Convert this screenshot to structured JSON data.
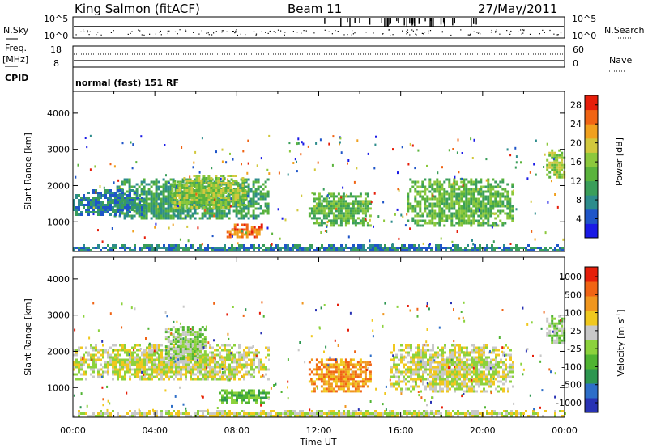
{
  "header": {
    "station": "King Salmon (fitACF)",
    "beam": "Beam 11",
    "date": "27/May/2011"
  },
  "panels": {
    "nsky_label": "N.Sky",
    "nsky_ticks": [
      "10^5",
      "10^0"
    ],
    "nsearch_label": "N.Search",
    "freq_label": "Freq.",
    "freq_unit": "[MHz]",
    "freq_ticks": [
      "18",
      "8"
    ],
    "nave_label": "Nave",
    "nave_ticks": [
      "60",
      "0"
    ],
    "cpid_label": "CPID",
    "cpid_value": "normal (fast) 151 RF"
  },
  "colorbars": {
    "power": {
      "label": "Power [dB]",
      "ticks": [
        "4",
        "8",
        "12",
        "16",
        "20",
        "24",
        "28"
      ],
      "colors": [
        "#1a1ae6",
        "#1f55c8",
        "#2d8c8c",
        "#3a9e5a",
        "#5ab33c",
        "#8cc83c",
        "#d2c83c",
        "#f0a01e",
        "#f06414",
        "#e61e0a"
      ]
    },
    "velocity": {
      "label": "Velocity [m s",
      "label_sup": "-1",
      "label_end": "]",
      "ticks": [
        "1000",
        "500",
        "100",
        "25",
        "-25",
        "-100",
        "-500",
        "-1000"
      ],
      "colors": [
        "#2832b4",
        "#2d6ec8",
        "#2d9650",
        "#50b432",
        "#8cd23c",
        "#c8c8c8",
        "#f0c81e",
        "#f0961e",
        "#f06414",
        "#e61e0a"
      ]
    }
  },
  "axes": {
    "ylabel": "Slant Range [km]",
    "yticks": [
      "1000",
      "2000",
      "3000",
      "4000"
    ],
    "xlabel": "Time UT",
    "xticks": [
      "00:00",
      "04:00",
      "08:00",
      "12:00",
      "16:00",
      "20:00",
      "00:00"
    ]
  },
  "chart_data": [
    {
      "type": "heatmap",
      "title": "",
      "quantity": "Power [dB]",
      "xlabel": "",
      "ylabel": "Slant Range [km]",
      "xlim": [
        0,
        24
      ],
      "ylim": [
        180,
        4600
      ],
      "colorscale_range": [
        0,
        30
      ],
      "regions": [
        {
          "t": [
            2.0,
            9.5
          ],
          "range_km": [
            1100,
            2200
          ],
          "value": 10
        },
        {
          "t": [
            4.8,
            8.4
          ],
          "range_km": [
            1400,
            2300
          ],
          "value": 18
        },
        {
          "t": [
            7.5,
            9.3
          ],
          "range_km": [
            600,
            950
          ],
          "value": 28
        },
        {
          "t": [
            0.0,
            3.5
          ],
          "range_km": [
            1200,
            1900
          ],
          "value": 7
        },
        {
          "t": [
            11.5,
            14.5
          ],
          "range_km": [
            900,
            1800
          ],
          "value": 14
        },
        {
          "t": [
            16.3,
            21.5
          ],
          "range_km": [
            900,
            2200
          ],
          "value": 12
        },
        {
          "t": [
            23.1,
            24.0
          ],
          "range_km": [
            2200,
            3000
          ],
          "value": 16
        },
        {
          "t": [
            0.0,
            24.0
          ],
          "range_km": [
            200,
            380
          ],
          "value": 8
        }
      ]
    },
    {
      "type": "heatmap",
      "title": "",
      "quantity": "Velocity [m s-1]",
      "xlabel": "Time UT",
      "ylabel": "Slant Range [km]",
      "xlim": [
        0,
        24
      ],
      "ylim": [
        180,
        4600
      ],
      "colorscale_range": [
        -1000,
        1000
      ],
      "regions": [
        {
          "t": [
            0.0,
            9.5
          ],
          "range_km": [
            1200,
            2200
          ],
          "value": 0
        },
        {
          "t": [
            4.5,
            6.5
          ],
          "range_km": [
            1800,
            2700
          ],
          "value": -150
        },
        {
          "t": [
            7.0,
            9.6
          ],
          "range_km": [
            600,
            950
          ],
          "value": -300
        },
        {
          "t": [
            11.5,
            14.5
          ],
          "range_km": [
            900,
            1800
          ],
          "value": 500
        },
        {
          "t": [
            15.5,
            21.5
          ],
          "range_km": [
            900,
            2200
          ],
          "value": 150
        },
        {
          "t": [
            23.1,
            24.0
          ],
          "range_km": [
            2200,
            3000
          ],
          "value": -200
        },
        {
          "t": [
            0.0,
            24.0
          ],
          "range_km": [
            200,
            380
          ],
          "value": 0
        }
      ]
    }
  ]
}
